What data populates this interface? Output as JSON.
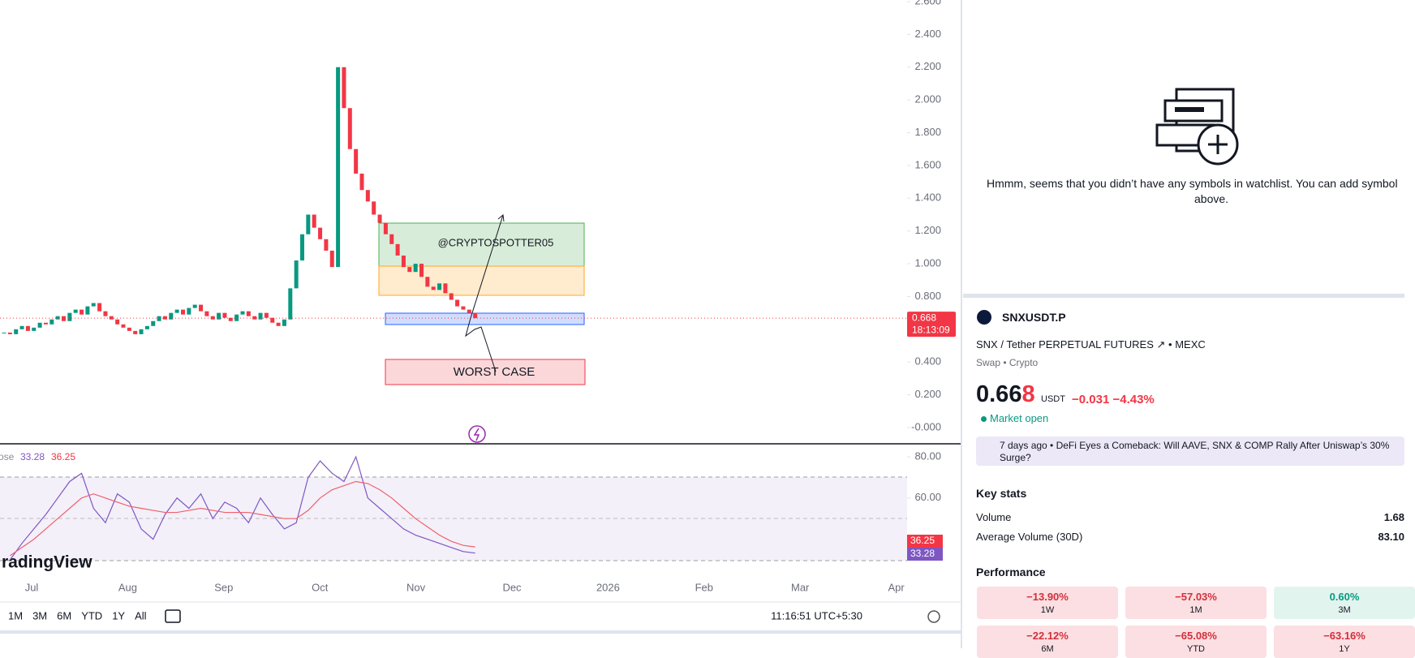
{
  "chart": {
    "type": "candlestick",
    "ylim": [
      0,
      2.6
    ],
    "yticks": [
      {
        "value": 2.6,
        "label": "2.600"
      },
      {
        "value": 2.4,
        "label": "2.400"
      },
      {
        "value": 2.2,
        "label": "2.200"
      },
      {
        "value": 2.0,
        "label": "2.000"
      },
      {
        "value": 1.8,
        "label": "1.800"
      },
      {
        "value": 1.6,
        "label": "1.600"
      },
      {
        "value": 1.4,
        "label": "1.400"
      },
      {
        "value": 1.2,
        "label": "1.200"
      },
      {
        "value": 1.0,
        "label": "1.000"
      },
      {
        "value": 0.8,
        "label": "0.800"
      },
      {
        "value": 0.4,
        "label": "0.400"
      },
      {
        "value": 0.2,
        "label": "0.200"
      },
      {
        "value": 0,
        "label": "-0.000"
      }
    ],
    "months": [
      "Jul",
      "Aug",
      "Sep",
      "Oct",
      "Nov",
      "Dec",
      "2026",
      "Feb",
      "Mar",
      "Apr"
    ],
    "closes": [
      0.58,
      0.57,
      0.6,
      0.62,
      0.59,
      0.61,
      0.64,
      0.63,
      0.66,
      0.68,
      0.65,
      0.7,
      0.72,
      0.69,
      0.74,
      0.76,
      0.71,
      0.68,
      0.66,
      0.63,
      0.61,
      0.59,
      0.57,
      0.6,
      0.62,
      0.65,
      0.68,
      0.66,
      0.7,
      0.72,
      0.69,
      0.73,
      0.75,
      0.71,
      0.68,
      0.66,
      0.7,
      0.67,
      0.65,
      0.69,
      0.71,
      0.68,
      0.66,
      0.7,
      0.67,
      0.64,
      0.62,
      0.66,
      0.85,
      1.02,
      1.18,
      1.3,
      1.22,
      1.15,
      1.08,
      0.98,
      2.2,
      1.95,
      1.7,
      1.55,
      1.45,
      1.38,
      1.3,
      1.25,
      1.18,
      1.12,
      1.05,
      0.98,
      0.95,
      1.0,
      0.92,
      0.86,
      0.84,
      0.88,
      0.82,
      0.78,
      0.74,
      0.72,
      0.7,
      0.668
    ],
    "last_price": 0.668,
    "countdown": "18:13:09",
    "annotations": [
      "@CRYPTOSPOTTER05",
      "WORST CASE"
    ],
    "rsi": {
      "legend": "ose",
      "yticks": [
        {
          "value": 80,
          "label": "80.00"
        },
        {
          "value": 60,
          "label": "60.00"
        }
      ],
      "values": [
        30,
        38,
        45,
        52,
        60,
        68,
        72,
        55,
        48,
        62,
        58,
        45,
        40,
        52,
        60,
        55,
        62,
        50,
        58,
        55,
        48,
        60,
        52,
        45,
        48,
        70,
        78,
        72,
        68,
        80,
        60,
        55,
        50,
        45,
        42,
        40,
        38,
        36,
        34,
        33.28
      ],
      "ma": [
        32,
        36,
        40,
        45,
        50,
        55,
        60,
        62,
        60,
        58,
        56,
        55,
        54,
        53,
        53,
        54,
        55,
        54,
        53,
        53,
        53,
        52,
        51,
        50,
        50,
        54,
        60,
        64,
        66,
        68,
        67,
        64,
        60,
        55,
        50,
        46,
        42,
        39,
        37,
        36.25
      ]
    },
    "watermark": "radingView"
  },
  "toolbar": {
    "ranges": [
      "1M",
      "3M",
      "6M",
      "YTD",
      "1Y",
      "All"
    ],
    "clock": "11:16:51 UTC+5:30"
  },
  "watchlist": {
    "line1": "Hmmm, seems that you didn’t have any symbols in watchlist. You can add symbol",
    "line2": "above."
  },
  "symbol": {
    "ticker": "SNXUSDT.P",
    "description": "SNX / Tether PERPETUAL FUTURES",
    "exchange": "• MEXC",
    "category": "Swap • Crypto",
    "price_main": "0.66",
    "price_last": "8",
    "currency": "USDT",
    "change": "−0.031",
    "change_pct": "−4.43%",
    "status": "Market open"
  },
  "news": {
    "age": "7 days ago",
    "headline": "DeFi Eyes a Comeback: Will AAVE, SNX & COMP Rally After Uniswap’s 30%",
    "headline_end": "Surge?"
  },
  "key_stats": {
    "title": "Key stats",
    "rows": [
      [
        "Volume",
        "1.68"
      ],
      [
        "Average Volume (30D)",
        "83.10"
      ]
    ]
  },
  "performance": {
    "title": "Performance",
    "tiles": [
      [
        "−13.90%",
        "1W"
      ],
      [
        "−57.03%",
        "1M"
      ],
      [
        "0.60%",
        "3M"
      ],
      [
        "−22.12%",
        "6M"
      ],
      [
        "−65.08%",
        "YTD"
      ],
      [
        "−63.16%",
        "1Y"
      ]
    ]
  }
}
